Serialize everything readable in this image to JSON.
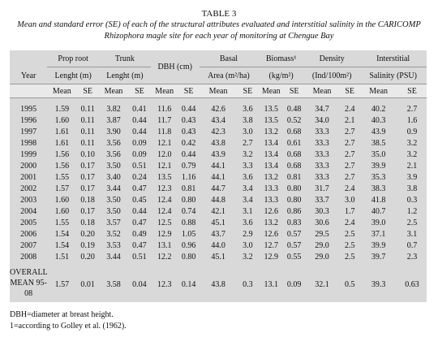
{
  "header": {
    "title": "TABLE 3",
    "caption": "Mean and standard error (SE) of each of the structural attributes evaluated and interstitial salinity in the CARICOMP Rhizophora magle site for each year of monitoring at Chengue Bay"
  },
  "table": {
    "year_label": "Year",
    "groups": [
      [
        "Prop root",
        "Lenght (m)"
      ],
      [
        "Trunk",
        "Lenght (m)"
      ],
      [
        "DBH (cm)"
      ],
      [
        "Basal",
        "Area (m²/ha)"
      ],
      [
        "Biomass¹",
        "(kg/m²)"
      ],
      [
        "Density",
        "(Ind/100m²)"
      ],
      [
        "Interstitial",
        "Salinity (PSU)"
      ]
    ],
    "stat_labels": [
      "Mean",
      "SE"
    ],
    "rows": [
      [
        "1995",
        "1.59",
        "0.11",
        "3.82",
        "0.41",
        "11.6",
        "0.44",
        "42.6",
        "3.6",
        "13.5",
        "0.48",
        "34.7",
        "2.4",
        "40.2",
        "2.7"
      ],
      [
        "1996",
        "1.60",
        "0.11",
        "3.87",
        "0.44",
        "11.7",
        "0.43",
        "43.4",
        "3.8",
        "13.5",
        "0.52",
        "34.0",
        "2.1",
        "40.3",
        "1.6"
      ],
      [
        "1997",
        "1.61",
        "0.11",
        "3.90",
        "0.44",
        "11.8",
        "0.43",
        "42.3",
        "3.0",
        "13.2",
        "0.68",
        "33.3",
        "2.7",
        "43.9",
        "0.9"
      ],
      [
        "1998",
        "1.61",
        "0.11",
        "3.56",
        "0.09",
        "12.1",
        "0.42",
        "43.8",
        "2.7",
        "13.4",
        "0.61",
        "33.3",
        "2.7",
        "38.5",
        "3.2"
      ],
      [
        "1999",
        "1.56",
        "0.10",
        "3.56",
        "0.09",
        "12.0",
        "0.44",
        "43.9",
        "3.2",
        "13.4",
        "0.68",
        "33.3",
        "2.7",
        "35.0",
        "3.2"
      ],
      [
        "2000",
        "1.56",
        "0.17",
        "3.50",
        "0.51",
        "12.1",
        "0.79",
        "44.1",
        "3.3",
        "13.4",
        "0.68",
        "33.3",
        "2.7",
        "39.9",
        "2.1"
      ],
      [
        "2001",
        "1.55",
        "0.17",
        "3.40",
        "0.24",
        "13.5",
        "1.16",
        "44.1",
        "3.6",
        "13.2",
        "0.81",
        "33.3",
        "2.7",
        "35.3",
        "3.9"
      ],
      [
        "2002",
        "1.57",
        "0.17",
        "3.44",
        "0.47",
        "12.3",
        "0.81",
        "44.7",
        "3.4",
        "13.3",
        "0.80",
        "31.7",
        "2.4",
        "38.3",
        "3.8"
      ],
      [
        "2003",
        "1.60",
        "0.18",
        "3.50",
        "0.45",
        "12.4",
        "0.80",
        "44.8",
        "3.4",
        "13.3",
        "0.80",
        "33.7",
        "3.0",
        "41.8",
        "0.3"
      ],
      [
        "2004",
        "1.60",
        "0.17",
        "3.50",
        "0.44",
        "12.4",
        "0.74",
        "42.1",
        "3.1",
        "12.6",
        "0.86",
        "30.3",
        "1.7",
        "40.7",
        "1.2"
      ],
      [
        "2005",
        "1.55",
        "0.18",
        "3.57",
        "0.47",
        "12.5",
        "0.88",
        "45.1",
        "3.6",
        "13.2",
        "0.83",
        "30.6",
        "2.4",
        "39.0",
        "2.5"
      ],
      [
        "2006",
        "1.54",
        "0.20",
        "3.52",
        "0.49",
        "12.9",
        "1.05",
        "43.7",
        "2.9",
        "12.6",
        "0.57",
        "29.5",
        "2.5",
        "37.1",
        "3.1"
      ],
      [
        "2007",
        "1.54",
        "0.19",
        "3.53",
        "0.47",
        "13.1",
        "0.96",
        "44.0",
        "3.0",
        "12.7",
        "0.57",
        "29.0",
        "2.5",
        "39.9",
        "0.7"
      ],
      [
        "2008",
        "1.51",
        "0.20",
        "3.44",
        "0.51",
        "12.2",
        "0.80",
        "45.1",
        "3.2",
        "12.9",
        "0.55",
        "29.0",
        "2.5",
        "39.7",
        "2.3"
      ],
      [
        "OVERALL MEAN 95-08",
        "1.57",
        "0.01",
        "3.58",
        "0.04",
        "12.3",
        "0.14",
        "43.8",
        "0.3",
        "13.1",
        "0.09",
        "32.1",
        "0.5",
        "39.3",
        "0.63"
      ]
    ]
  },
  "footnotes": [
    "DBH=diameter at breast height.",
    "1=according to Golley et al. (1962)."
  ]
}
